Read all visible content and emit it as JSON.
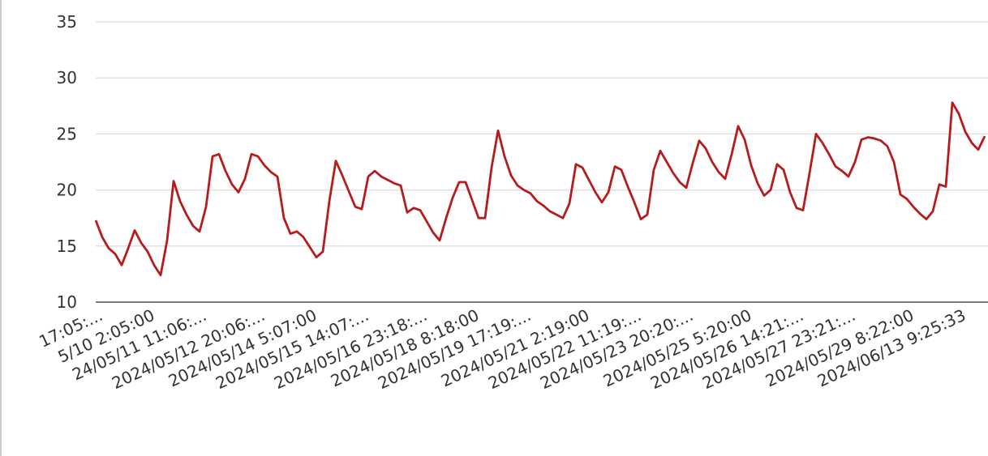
{
  "chart_data": {
    "type": "line",
    "categories": [
      null,
      null,
      null,
      "17:05:...",
      null,
      null,
      null,
      null,
      null,
      null,
      null,
      "5/10 2:05:00",
      null,
      null,
      null,
      null,
      null,
      null,
      null,
      "24/05/11 11:06:...",
      null,
      null,
      null,
      null,
      null,
      null,
      null,
      null,
      "2024/05/12 20:06:...",
      null,
      null,
      null,
      null,
      null,
      null,
      null,
      "2024/05/14 5:07:00",
      null,
      null,
      null,
      null,
      null,
      null,
      null,
      "2024/05/15 14:07:...",
      null,
      null,
      null,
      null,
      null,
      null,
      null,
      null,
      "2024/05/16 23:18:...",
      null,
      null,
      null,
      null,
      null,
      null,
      null,
      "2024/05/18 8:18:00",
      null,
      null,
      null,
      null,
      null,
      null,
      null,
      "2024/05/19 17:19:...",
      null,
      null,
      null,
      null,
      null,
      null,
      null,
      null,
      "2024/05/21 2:19:00",
      null,
      null,
      null,
      null,
      null,
      null,
      null,
      "2024/05/22 11:19:...",
      null,
      null,
      null,
      null,
      null,
      null,
      null,
      "2024/05/23 20:20:...",
      null,
      null,
      null,
      null,
      null,
      null,
      null,
      null,
      "2024/05/25 5:20:00",
      null,
      null,
      null,
      null,
      null,
      null,
      null,
      "2024/05/26 14:21:...",
      null,
      null,
      null,
      null,
      null,
      null,
      null,
      "2024/05/27 23:21:...",
      null,
      null,
      null,
      null,
      null,
      null,
      null,
      null,
      "2024/05/29 8:22:00",
      null,
      null,
      null,
      null,
      null,
      null,
      null,
      "2024/06/13 9:25:33",
      null
    ],
    "series": [
      {
        "color": "#b71c1c",
        "values": [
          17.3,
          15.8,
          14.8,
          14.3,
          13.3,
          14.8,
          16.4,
          15.3,
          14.5,
          13.3,
          12.4,
          15.5,
          20.8,
          19.0,
          17.8,
          16.8,
          16.3,
          18.5,
          23.0,
          23.2,
          21.7,
          20.5,
          19.8,
          21.0,
          23.2,
          23.0,
          22.2,
          21.6,
          21.2,
          17.5,
          16.1,
          16.3,
          15.8,
          14.9,
          14.0,
          14.5,
          19.0,
          22.6,
          21.3,
          19.9,
          18.5,
          18.3,
          21.2,
          21.7,
          21.2,
          20.9,
          20.6,
          20.4,
          18.0,
          18.4,
          18.2,
          17.2,
          16.2,
          15.5,
          17.5,
          19.3,
          20.7,
          20.7,
          19.1,
          17.5,
          17.5,
          22.0,
          25.3,
          23.0,
          21.3,
          20.4,
          20.0,
          19.7,
          19.0,
          18.6,
          18.1,
          17.8,
          17.5,
          18.8,
          22.3,
          22.0,
          20.9,
          19.8,
          18.9,
          19.8,
          22.1,
          21.8,
          20.3,
          18.9,
          17.4,
          17.8,
          21.8,
          23.5,
          22.5,
          21.5,
          20.7,
          20.2,
          22.4,
          24.4,
          23.7,
          22.5,
          21.6,
          21.0,
          23.2,
          25.7,
          24.5,
          22.2,
          20.6,
          19.5,
          20.0,
          22.3,
          21.8,
          19.8,
          18.4,
          18.2,
          21.5,
          25.0,
          24.2,
          23.2,
          22.1,
          21.7,
          21.2,
          22.5,
          24.5,
          24.7,
          24.6,
          24.4,
          23.9,
          22.5,
          19.6,
          19.2,
          18.5,
          17.9,
          17.4,
          18.1,
          20.5,
          20.3,
          27.8,
          26.8,
          25.2,
          24.2,
          23.6,
          24.8
        ]
      }
    ],
    "ylim": [
      10,
      35
    ],
    "yticks": [
      10,
      15,
      20,
      25,
      30,
      35
    ],
    "grid": true
  }
}
